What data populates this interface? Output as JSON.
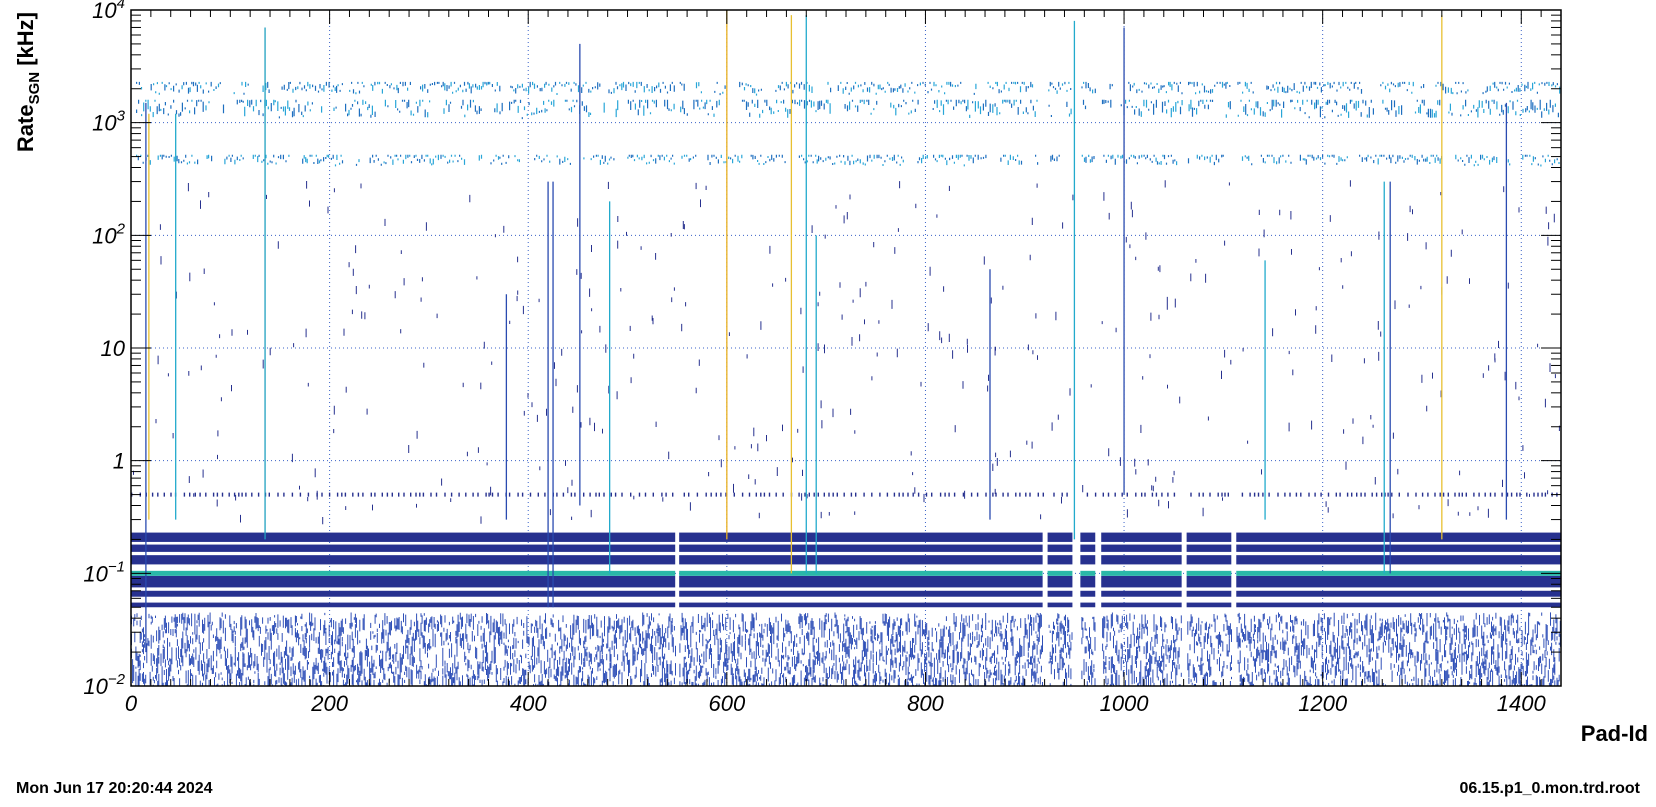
{
  "chart_data": {
    "type": "heatmap",
    "title": "",
    "xlabel": "Pad-Id",
    "ylabel_main": "Rate",
    "ylabel_sub": "SGN",
    "ylabel_unit": " [kHz]",
    "xlim": [
      0,
      1440
    ],
    "ylim": [
      0.01,
      10000
    ],
    "yscale": "log",
    "grid": true,
    "x_ticks": [
      0,
      200,
      400,
      600,
      800,
      1000,
      1200,
      1400
    ],
    "x_tick_labels": [
      "0",
      "200",
      "400",
      "600",
      "800",
      "1000",
      "1200",
      "1400"
    ],
    "y_ticks": [
      0.01,
      0.1,
      1,
      10,
      100,
      1000,
      10000
    ],
    "y_tick_labels": [
      {
        "base": "10",
        "exp": "−2"
      },
      {
        "base": "10",
        "exp": "−1"
      },
      {
        "base": "1",
        "exp": ""
      },
      {
        "base": "10",
        "exp": ""
      },
      {
        "base": "10",
        "exp": "2"
      },
      {
        "base": "10",
        "exp": "3"
      },
      {
        "base": "10",
        "exp": "4"
      }
    ],
    "gaps_x": [
      [
        548,
        552
      ],
      [
        918,
        923
      ],
      [
        948,
        956
      ],
      [
        971,
        977
      ],
      [
        1058,
        1063
      ],
      [
        1108,
        1113
      ]
    ],
    "dense_bands_y": [
      {
        "y0": 0.19,
        "y1": 0.23
      },
      {
        "y0": 0.155,
        "y1": 0.18
      },
      {
        "y0": 0.12,
        "y1": 0.145
      },
      {
        "y0": 0.075,
        "y1": 0.095
      },
      {
        "y0": 0.062,
        "y1": 0.07
      },
      {
        "y0": 0.05,
        "y1": 0.055
      }
    ],
    "highlight_row_y": 0.1,
    "sparse_row_y": 0.5,
    "upper_bands_y": [
      {
        "y0": 1800,
        "y1": 2300
      },
      {
        "y0": 1100,
        "y1": 1600
      },
      {
        "y0": 420,
        "y1": 520
      }
    ],
    "noise_range_y": [
      0.01,
      0.045
    ],
    "hot_channels": [
      {
        "x": 15,
        "y0": 0.02,
        "y1": 1500,
        "color": "#2a4bb0"
      },
      {
        "x": 18,
        "y0": 0.3,
        "y1": 1200,
        "color": "#e8c030"
      },
      {
        "x": 45,
        "y0": 0.3,
        "y1": 1200,
        "color": "#22aacc"
      },
      {
        "x": 135,
        "y0": 0.2,
        "y1": 7000,
        "color": "#20a0c0"
      },
      {
        "x": 378,
        "y0": 0.3,
        "y1": 30,
        "color": "#2a4bb0"
      },
      {
        "x": 420,
        "y0": 0.05,
        "y1": 300,
        "color": "#2a4bb0"
      },
      {
        "x": 425,
        "y0": 0.05,
        "y1": 300,
        "color": "#2a4bb0"
      },
      {
        "x": 452,
        "y0": 0.4,
        "y1": 5000,
        "color": "#2a4bb0"
      },
      {
        "x": 482,
        "y0": 0.1,
        "y1": 200,
        "color": "#22aacc"
      },
      {
        "x": 600,
        "y0": 0.2,
        "y1": 10000,
        "color": "#e8b020"
      },
      {
        "x": 665,
        "y0": 0.1,
        "y1": 9000,
        "color": "#e8c030"
      },
      {
        "x": 680,
        "y0": 0.1,
        "y1": 9000,
        "color": "#22aacc"
      },
      {
        "x": 690,
        "y0": 0.1,
        "y1": 100,
        "color": "#22aacc"
      },
      {
        "x": 865,
        "y0": 0.3,
        "y1": 50,
        "color": "#2a4bb0"
      },
      {
        "x": 950,
        "y0": 0.2,
        "y1": 8000,
        "color": "#22aacc"
      },
      {
        "x": 1000,
        "y0": 0.5,
        "y1": 7000,
        "color": "#2a4bb0"
      },
      {
        "x": 1142,
        "y0": 0.3,
        "y1": 60,
        "color": "#22aacc"
      },
      {
        "x": 1262,
        "y0": 0.1,
        "y1": 300,
        "color": "#22aacc"
      },
      {
        "x": 1268,
        "y0": 0.1,
        "y1": 300,
        "color": "#2a4bb0"
      },
      {
        "x": 1320,
        "y0": 0.2,
        "y1": 9000,
        "color": "#e8c030"
      },
      {
        "x": 1385,
        "y0": 0.3,
        "y1": 1500,
        "color": "#2a4bb0"
      }
    ],
    "colors": {
      "dense": "#27318f",
      "noise": "#3050b8",
      "highlight": "#2ab8a8",
      "upper_dark": "#1e6fc0",
      "upper_light": "#28a6d8",
      "grid": "#3a62c8",
      "frame": "#000000"
    }
  },
  "footer": {
    "timestamp": "Mon Jun 17 20:20:44 2024",
    "filename": "06.15.p1_0.mon.trd.root"
  }
}
